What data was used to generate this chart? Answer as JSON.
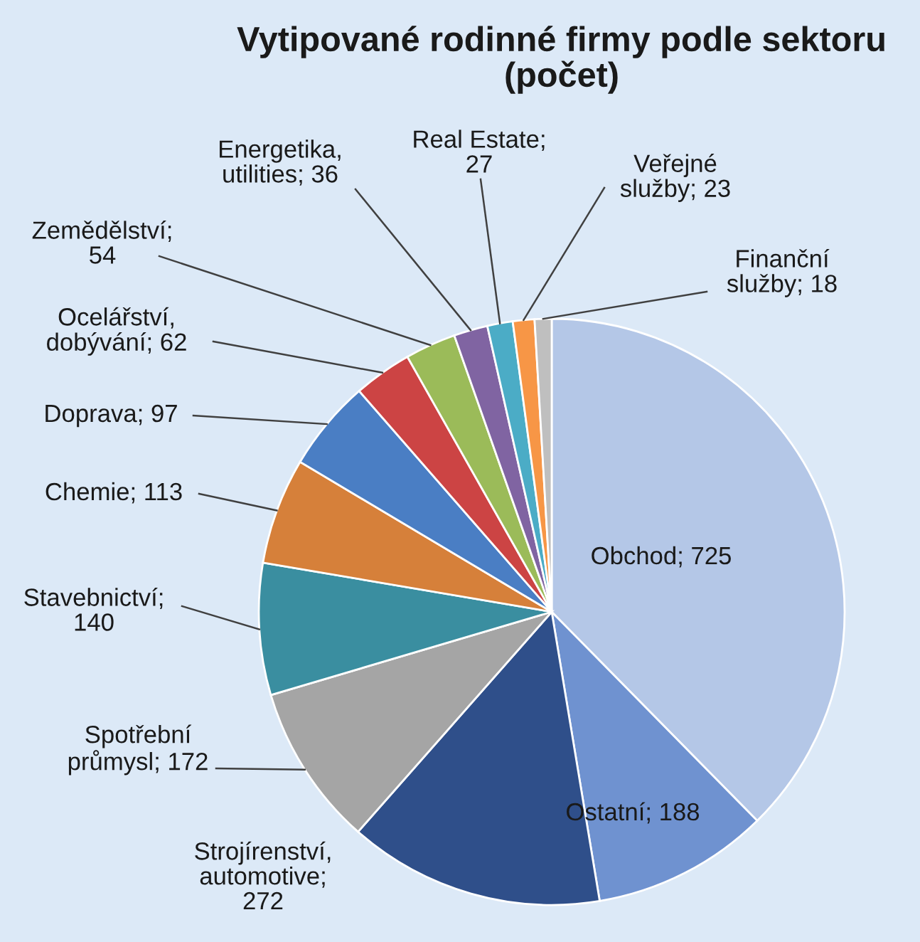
{
  "chart_data": {
    "type": "pie",
    "title": "Vytipované rodinné firmy podle sektoru\n(počet)",
    "categories": [
      "Obchod; 725",
      "Ostatní; 188",
      "Strojírenství,\nautomotive;\n272",
      "Spotřební\nprůmysl; 172",
      "Stavebnictví;\n140",
      "Chemie; 113",
      "Doprava; 97",
      "Ocelářství,\ndobývání; 62",
      "Zemědělství;\n54",
      "Energetika,\nutilities; 36",
      "Real Estate;\n27",
      "Veřejné\nslužby; 23",
      "Finanční\nslužby; 18"
    ],
    "values": [
      725,
      188,
      272,
      172,
      140,
      113,
      97,
      62,
      54,
      36,
      27,
      23,
      18
    ],
    "colors": [
      "#b4c7e7",
      "#6f92d0",
      "#2f4f8a",
      "#a5a5a5",
      "#3a8ea0",
      "#d6803a",
      "#4a7ec4",
      "#cc4444",
      "#9bbb59",
      "#8064a2",
      "#4bacc6",
      "#f79646",
      "#bfbfbf"
    ]
  }
}
